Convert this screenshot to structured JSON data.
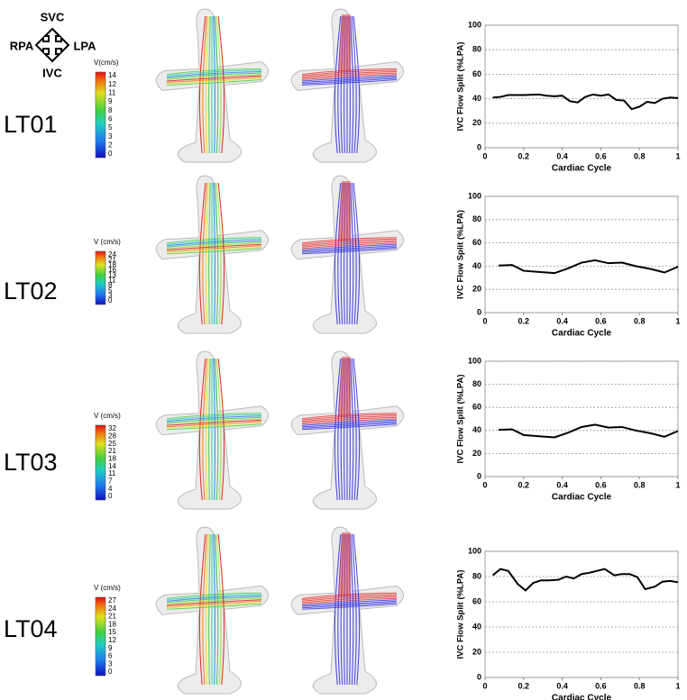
{
  "compass": {
    "top": "SVC",
    "left": "RPA",
    "right": "LPA",
    "bottom": "IVC"
  },
  "rows": [
    {
      "label": "LT01",
      "colorbar": {
        "title": "V(cm/s)",
        "ticks": [
          14,
          12,
          11,
          9,
          8,
          6,
          5,
          3,
          2,
          0
        ]
      }
    },
    {
      "label": "LT02",
      "colorbar": {
        "title": "V (cm/s)",
        "ticks": [
          24,
          21,
          18,
          16,
          13,
          11,
          8,
          5,
          3,
          0
        ]
      }
    },
    {
      "label": "LT03",
      "colorbar": {
        "title": "V (cm/s)",
        "ticks": [
          32,
          28,
          25,
          21,
          18,
          14,
          11,
          7,
          4,
          0
        ]
      }
    },
    {
      "label": "LT04",
      "colorbar": {
        "title": "V (cm/s)",
        "ticks": [
          27,
          24,
          21,
          18,
          15,
          12,
          9,
          6,
          3,
          0
        ]
      }
    }
  ],
  "chart_data": [
    {
      "type": "line",
      "xlabel": "Cardiac Cycle",
      "ylabel": "IVC Flow Split (%LPA)",
      "x": [
        0.04,
        0.08,
        0.12,
        0.2,
        0.28,
        0.32,
        0.36,
        0.4,
        0.44,
        0.48,
        0.52,
        0.56,
        0.6,
        0.64,
        0.68,
        0.72,
        0.76,
        0.8,
        0.84,
        0.88,
        0.92,
        0.96,
        1
      ],
      "series": [
        {
          "color": "#000000",
          "values": [
            41,
            41.5,
            43,
            43,
            43.5,
            42.5,
            42,
            42.5,
            38,
            37,
            41.5,
            43.5,
            42.5,
            43.5,
            39,
            38.5,
            31.5,
            33.5,
            37.5,
            36.5,
            40,
            41,
            40.5
          ]
        }
      ],
      "xlim": [
        0,
        1
      ],
      "ylim": [
        0,
        100
      ],
      "xticks": [
        0,
        0.2,
        0.4,
        0.6,
        0.8,
        1
      ],
      "yticks": [
        0,
        20,
        40,
        60,
        80,
        100
      ],
      "grid": true
    },
    {
      "type": "line",
      "xlabel": "Cardiac Cycle",
      "ylabel": "IVC Flow Split (%LPA)",
      "x": [
        0.07,
        0.14,
        0.2,
        0.28,
        0.36,
        0.43,
        0.5,
        0.57,
        0.64,
        0.71,
        0.78,
        0.86,
        0.93,
        1
      ],
      "series": [
        {
          "color": "#000000",
          "values": [
            40.5,
            41,
            36,
            35,
            34,
            38,
            43,
            45,
            42.5,
            43,
            40,
            37.5,
            34.5,
            39.5
          ]
        }
      ],
      "xlim": [
        0,
        1
      ],
      "ylim": [
        0,
        100
      ],
      "xticks": [
        0,
        0.2,
        0.4,
        0.6,
        0.8,
        1
      ],
      "yticks": [
        0,
        20,
        40,
        60,
        80,
        100
      ],
      "grid": true
    },
    {
      "type": "line",
      "xlabel": "Cardiac Cycle",
      "ylabel": "IVC Flow Split (%LPA)",
      "x": [
        0.07,
        0.14,
        0.2,
        0.28,
        0.36,
        0.43,
        0.5,
        0.57,
        0.64,
        0.71,
        0.78,
        0.86,
        0.93,
        1
      ],
      "series": [
        {
          "color": "#000000",
          "values": [
            40.5,
            41,
            36,
            35,
            34,
            38,
            43,
            45,
            42.5,
            43,
            40,
            37.5,
            34.5,
            39.5
          ]
        }
      ],
      "xlim": [
        0,
        1
      ],
      "ylim": [
        0,
        100
      ],
      "xticks": [
        0,
        0.2,
        0.4,
        0.6,
        0.8,
        1
      ],
      "yticks": [
        0,
        20,
        40,
        60,
        80,
        100
      ],
      "grid": true
    },
    {
      "type": "line",
      "xlabel": "Cardiac Cycle",
      "ylabel": "IVC Flow Split (%LPA)",
      "x": [
        0.04,
        0.08,
        0.12,
        0.17,
        0.21,
        0.25,
        0.29,
        0.33,
        0.38,
        0.42,
        0.46,
        0.5,
        0.54,
        0.58,
        0.62,
        0.67,
        0.71,
        0.75,
        0.79,
        0.83,
        0.88,
        0.92,
        0.96,
        1
      ],
      "series": [
        {
          "color": "#000000",
          "values": [
            81,
            86,
            84.5,
            74,
            69,
            75,
            77,
            77,
            77.5,
            80,
            78.5,
            82,
            83,
            84.5,
            86,
            81,
            82,
            82,
            79.5,
            70,
            72,
            76,
            76.5,
            75.5
          ]
        }
      ],
      "xlim": [
        0,
        1
      ],
      "ylim": [
        0,
        100
      ],
      "xticks": [
        0,
        0.2,
        0.4,
        0.6,
        0.8,
        1
      ],
      "yticks": [
        0,
        20,
        40,
        60,
        80,
        100
      ],
      "grid": true
    }
  ]
}
